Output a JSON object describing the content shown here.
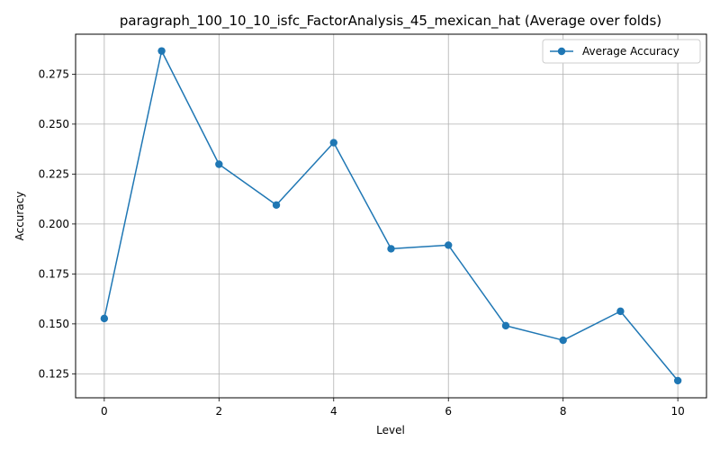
{
  "chart_data": {
    "type": "line",
    "title": "paragraph_100_10_10_isfc_FactorAnalysis_45_mexican_hat (Average over folds)",
    "xlabel": "Level",
    "ylabel": "Accuracy",
    "xlim": [
      -0.5,
      10.5
    ],
    "ylim": [
      0.113,
      0.295
    ],
    "x_ticks": [
      0,
      2,
      4,
      6,
      8,
      10
    ],
    "x_tick_labels": [
      "0",
      "2",
      "4",
      "6",
      "8",
      "10"
    ],
    "y_ticks": [
      0.125,
      0.15,
      0.175,
      0.2,
      0.225,
      0.25,
      0.275
    ],
    "y_tick_labels": [
      "0.125",
      "0.150",
      "0.175",
      "0.200",
      "0.225",
      "0.250",
      "0.275"
    ],
    "grid": true,
    "legend_position": "top-right",
    "x": [
      0,
      1,
      2,
      3,
      4,
      5,
      6,
      7,
      8,
      9,
      10
    ],
    "series": [
      {
        "name": "Average Accuracy",
        "color": "#1f77b4",
        "marker": "circle",
        "values": [
          0.1527,
          0.2866,
          0.2299,
          0.2095,
          0.2407,
          0.1876,
          0.1894,
          0.1491,
          0.1418,
          0.1563,
          0.1216
        ]
      }
    ]
  }
}
